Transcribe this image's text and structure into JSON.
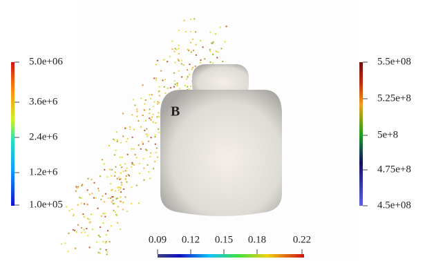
{
  "figure_label": "B",
  "left_colorbar": {
    "labels": [
      "5.0e+06",
      "3.6e+6",
      "2.4e+6",
      "1.2e+6",
      "1.0e+05"
    ]
  },
  "right_colorbar": {
    "labels": [
      "5.5e+08",
      "5.25e+8",
      "5e+8",
      "4.75e+8",
      "4.5e+08"
    ]
  },
  "bottom_colorbar": {
    "labels": [
      "0.09",
      "0.12",
      "0.15",
      "0.18",
      "0.22"
    ]
  }
}
